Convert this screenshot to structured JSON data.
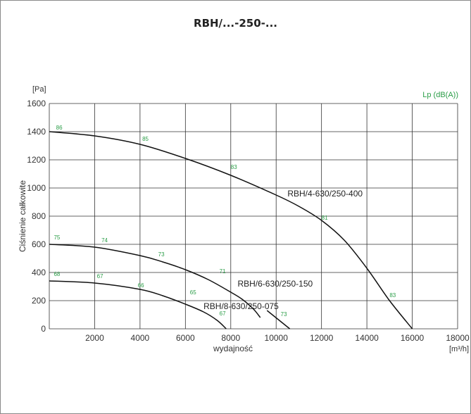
{
  "chart_data": {
    "type": "line",
    "title": "RBH/...-250-...",
    "xlabel": "wydajność",
    "xunit": "[m³/h]",
    "ylabel": "Ciśnienie całkowite",
    "yunit": "[Pa]",
    "secondary_label": "Lp (dB(A))",
    "xlim": [
      0,
      18000
    ],
    "ylim": [
      0,
      1600
    ],
    "xticks": [
      "2000",
      "4000",
      "6000",
      "8000",
      "10000",
      "12000",
      "14000",
      "16000",
      "18000"
    ],
    "yticks": [
      "0",
      "200",
      "400",
      "600",
      "800",
      "1000",
      "1200",
      "1400",
      "1600"
    ],
    "grid": true,
    "series": [
      {
        "name": "RBH/4-630/250-400",
        "x": [
          0,
          2000,
          4000,
          6000,
          8000,
          10000,
          11000,
          12000,
          13000,
          14000,
          15000,
          16000
        ],
        "y": [
          1400,
          1370,
          1310,
          1210,
          1090,
          950,
          870,
          770,
          630,
          430,
          200,
          0
        ],
        "noise": [
          {
            "x": 300,
            "y": 1400,
            "label": "86"
          },
          {
            "x": 4100,
            "y": 1320,
            "label": "85"
          },
          {
            "x": 8000,
            "y": 1120,
            "label": "83"
          },
          {
            "x": 12000,
            "y": 760,
            "label": "81"
          },
          {
            "x": 15000,
            "y": 210,
            "label": "83"
          }
        ]
      },
      {
        "name": "RBH/6-630/250-150",
        "x": [
          0,
          2000,
          4000,
          5000,
          6000,
          7000,
          8000,
          8500,
          9000,
          9300
        ],
        "y": [
          600,
          580,
          520,
          475,
          420,
          350,
          260,
          210,
          140,
          80
        ],
        "noise": [
          {
            "x": 200,
            "y": 620,
            "label": "75"
          },
          {
            "x": 2300,
            "y": 600,
            "label": "74"
          },
          {
            "x": 4800,
            "y": 500,
            "label": "73"
          },
          {
            "x": 7500,
            "y": 380,
            "label": "71"
          }
        ]
      },
      {
        "name": "RBH/8-630/250-075",
        "x": [
          0,
          2000,
          4000,
          5000,
          6000,
          6800,
          7400,
          7800
        ],
        "y": [
          340,
          325,
          280,
          235,
          175,
          120,
          60,
          0
        ],
        "noise": [
          {
            "x": 200,
            "y": 360,
            "label": "68"
          },
          {
            "x": 2100,
            "y": 345,
            "label": "67"
          },
          {
            "x": 3900,
            "y": 280,
            "label": "66"
          },
          {
            "x": 6200,
            "y": 230,
            "label": "65"
          },
          {
            "x": 7500,
            "y": 80,
            "label": "67"
          }
        ]
      },
      {
        "name": "",
        "x": [
          9600,
          10600
        ],
        "y": [
          130,
          0
        ],
        "noise": [
          {
            "x": 10200,
            "y": 75,
            "label": "73"
          }
        ]
      }
    ],
    "labels": [
      {
        "text": "RBH/4-630/250-400",
        "x": 10500,
        "y": 930
      },
      {
        "text": "RBH/6-630/250-150",
        "x": 8300,
        "y": 290
      },
      {
        "text": "RBH/8-630/250-075",
        "x": 6800,
        "y": 130
      }
    ],
    "colors": {
      "line": "#111111",
      "grid": "#333333",
      "noise": "#2a9d47",
      "axis_text": "#333333"
    }
  }
}
